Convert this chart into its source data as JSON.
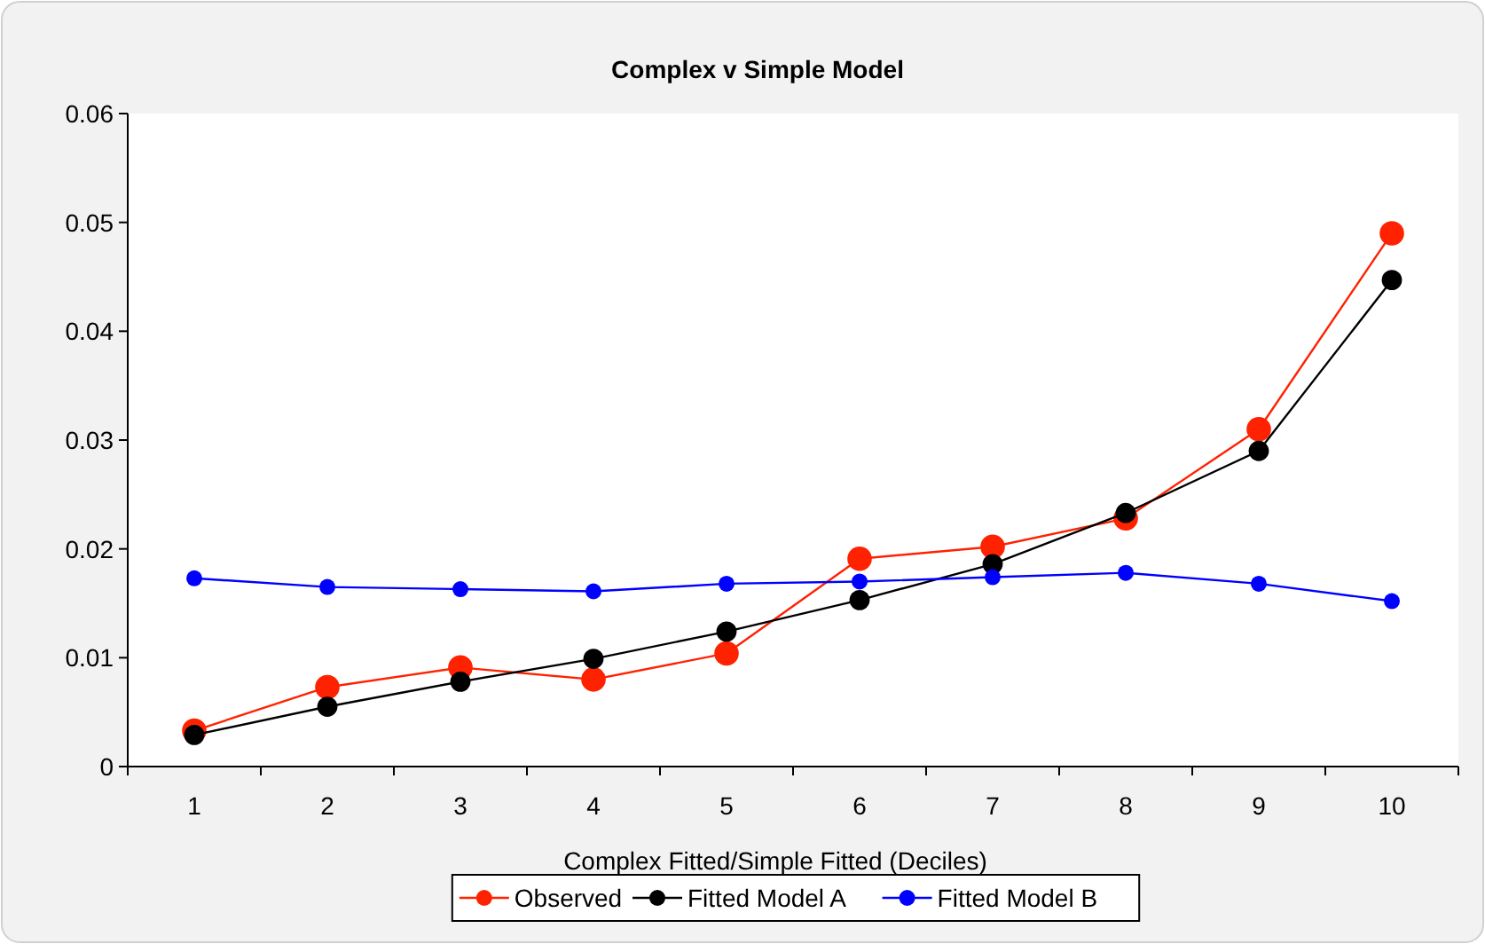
{
  "chart_data": {
    "type": "line",
    "title": "Complex v Simple Model",
    "xlabel": "Complex Fitted/Simple Fitted (Deciles)",
    "categories": [
      "1",
      "2",
      "3",
      "4",
      "5",
      "6",
      "7",
      "8",
      "9",
      "10"
    ],
    "series": [
      {
        "name": "Observed",
        "color": "#ff2200",
        "values": [
          0.0033,
          0.0073,
          0.0091,
          0.008,
          0.0104,
          0.0191,
          0.0202,
          0.0228,
          0.031,
          0.049
        ]
      },
      {
        "name": "Fitted Model A",
        "color": "#000000",
        "values": [
          0.0029,
          0.0055,
          0.0078,
          0.0099,
          0.0124,
          0.0153,
          0.0186,
          0.0233,
          0.029,
          0.0447
        ]
      },
      {
        "name": "Fitted Model B",
        "color": "#0000ff",
        "values": [
          0.0173,
          0.0165,
          0.0163,
          0.0161,
          0.0168,
          0.017,
          0.0174,
          0.0178,
          0.0168,
          0.0152
        ]
      }
    ],
    "ylim": [
      0,
      0.06
    ],
    "yticks": [
      0,
      0.01,
      0.02,
      0.03,
      0.04,
      0.05,
      0.06
    ],
    "grid": false,
    "legend": "bottom",
    "marker": "circle",
    "line_style": "solid"
  }
}
